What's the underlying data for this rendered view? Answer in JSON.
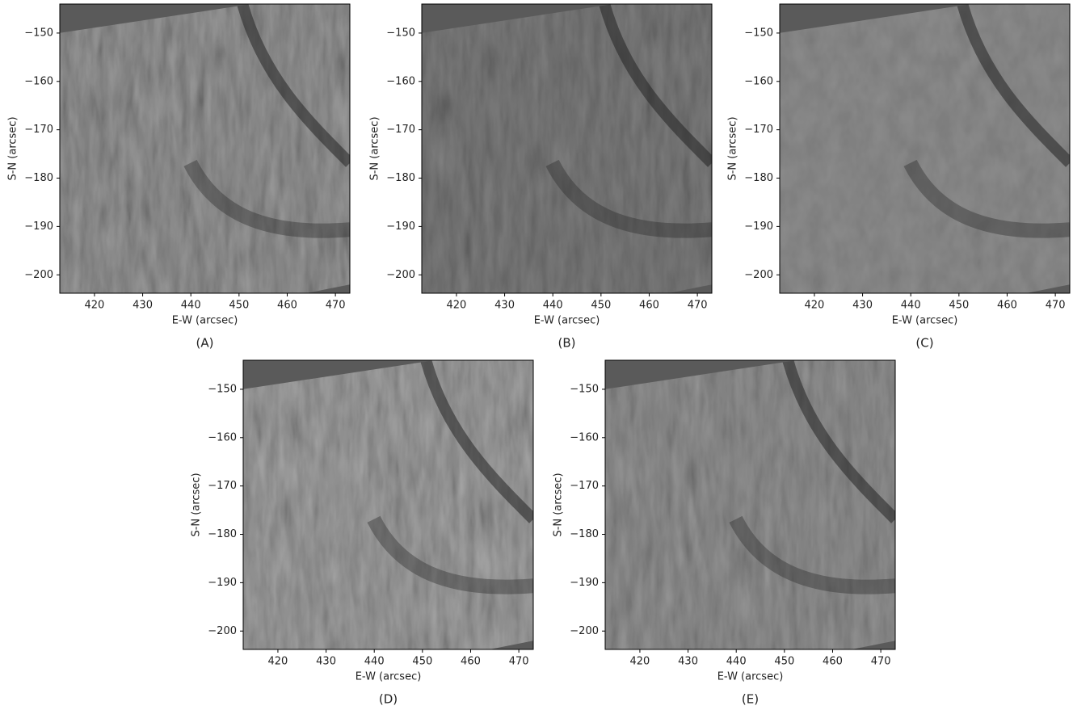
{
  "chart_data": [
    {
      "type": "image",
      "panel_label": "(A)",
      "xlabel": "E-W (arcsec)",
      "ylabel": "S-N (arcsec)",
      "xlim": [
        412.8,
        473.0
      ],
      "ylim": [
        -203.8,
        -144.0
      ],
      "xticks": [
        420,
        430,
        440,
        450,
        460,
        470
      ],
      "yticks": [
        {
          "value": -150,
          "label": "−150"
        },
        {
          "value": -160,
          "label": "−160"
        },
        {
          "value": -170,
          "label": "−170"
        },
        {
          "value": -180,
          "label": "−180"
        },
        {
          "value": -190,
          "label": "−190"
        },
        {
          "value": -200,
          "label": "−200"
        }
      ]
    },
    {
      "type": "image",
      "panel_label": "(B)",
      "xlabel": "E-W (arcsec)",
      "ylabel": "S-N (arcsec)",
      "xlim": [
        412.8,
        473.0
      ],
      "ylim": [
        -203.8,
        -144.0
      ],
      "xticks": [
        420,
        430,
        440,
        450,
        460,
        470
      ],
      "yticks": [
        {
          "value": -150,
          "label": "−150"
        },
        {
          "value": -160,
          "label": "−160"
        },
        {
          "value": -170,
          "label": "−170"
        },
        {
          "value": -180,
          "label": "−180"
        },
        {
          "value": -190,
          "label": "−190"
        },
        {
          "value": -200,
          "label": "−200"
        }
      ]
    },
    {
      "type": "image",
      "panel_label": "(C)",
      "xlabel": "E-W (arcsec)",
      "ylabel": "S-N (arcsec)",
      "xlim": [
        412.8,
        473.0
      ],
      "ylim": [
        -203.8,
        -144.0
      ],
      "xticks": [
        420,
        430,
        440,
        450,
        460,
        470
      ],
      "yticks": [
        {
          "value": -150,
          "label": "−150"
        },
        {
          "value": -160,
          "label": "−160"
        },
        {
          "value": -170,
          "label": "−170"
        },
        {
          "value": -180,
          "label": "−180"
        },
        {
          "value": -190,
          "label": "−190"
        },
        {
          "value": -200,
          "label": "−200"
        }
      ]
    },
    {
      "type": "image",
      "panel_label": "(D)",
      "xlabel": "E-W (arcsec)",
      "ylabel": "S-N (arcsec)",
      "xlim": [
        412.8,
        473.0
      ],
      "ylim": [
        -203.8,
        -144.0
      ],
      "xticks": [
        420,
        430,
        440,
        450,
        460,
        470
      ],
      "yticks": [
        {
          "value": -150,
          "label": "−150"
        },
        {
          "value": -160,
          "label": "−160"
        },
        {
          "value": -170,
          "label": "−170"
        },
        {
          "value": -180,
          "label": "−180"
        },
        {
          "value": -190,
          "label": "−190"
        },
        {
          "value": -200,
          "label": "−200"
        }
      ]
    },
    {
      "type": "image",
      "panel_label": "(E)",
      "xlabel": "E-W (arcsec)",
      "ylabel": "S-N (arcsec)",
      "xlim": [
        412.8,
        473.0
      ],
      "ylim": [
        -203.8,
        -144.0
      ],
      "xticks": [
        420,
        430,
        440,
        450,
        460,
        470
      ],
      "yticks": [
        {
          "value": -150,
          "label": "−150"
        },
        {
          "value": -160,
          "label": "−160"
        },
        {
          "value": -170,
          "label": "−170"
        },
        {
          "value": -180,
          "label": "−180"
        },
        {
          "value": -190,
          "label": "−190"
        },
        {
          "value": -200,
          "label": "−200"
        }
      ]
    }
  ]
}
